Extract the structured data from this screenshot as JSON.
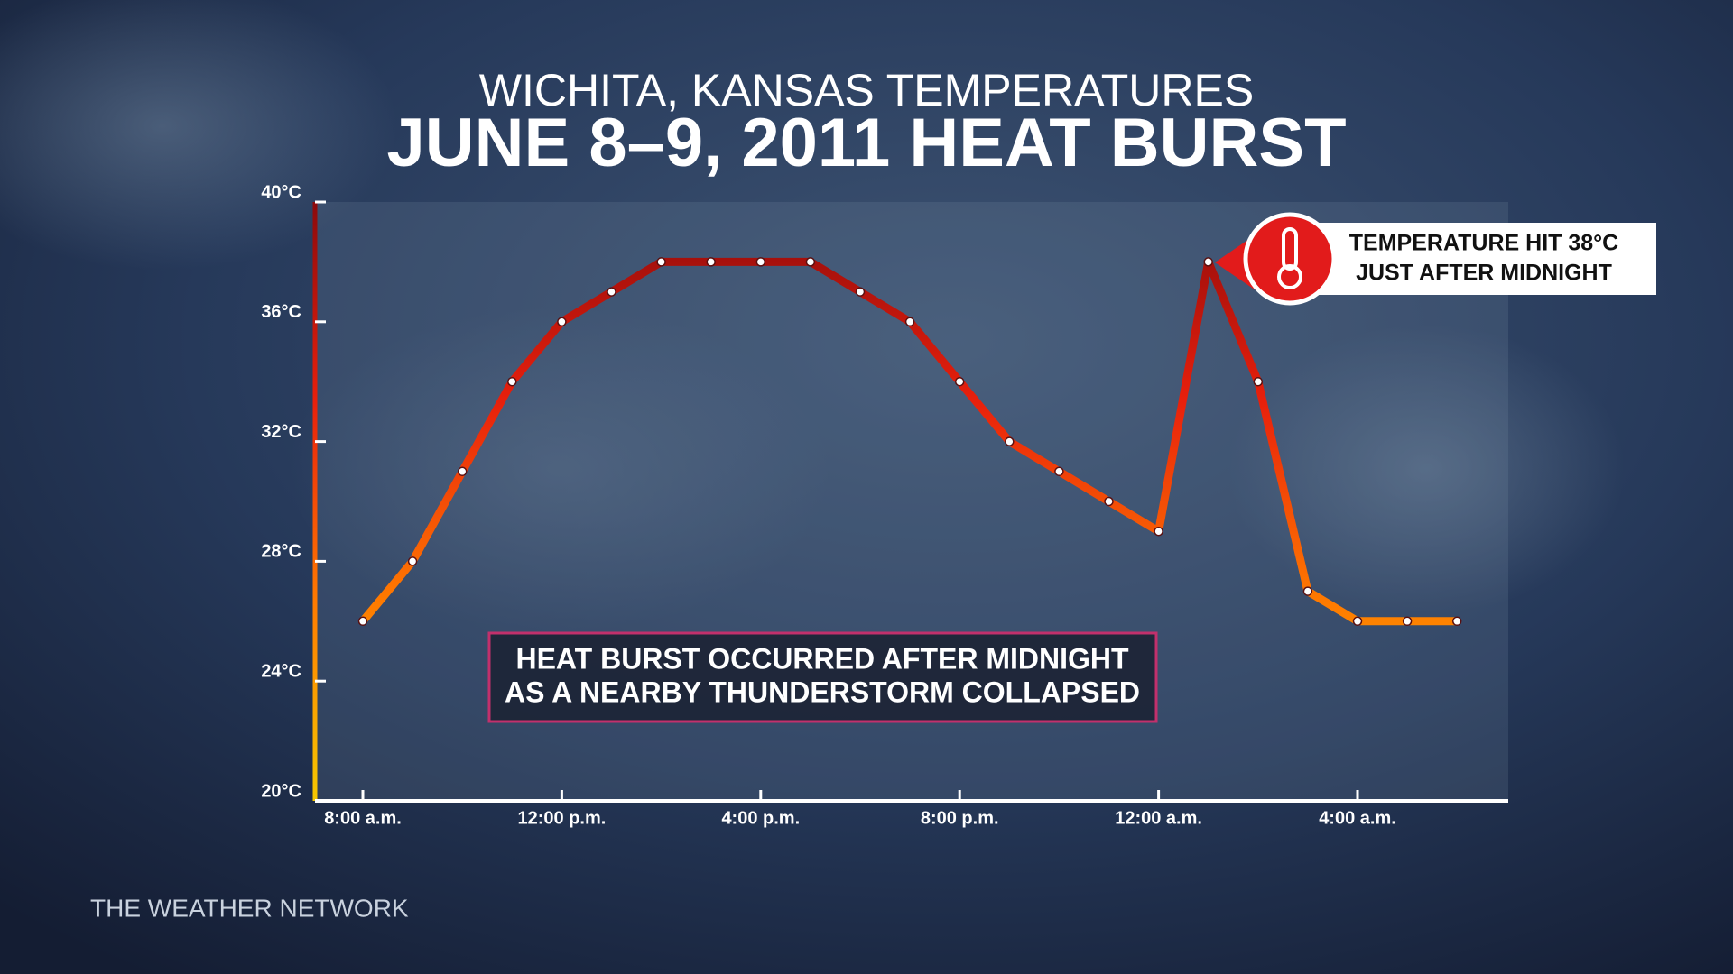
{
  "chart_data": {
    "type": "line",
    "title": "WICHITA, KANSAS TEMPERATURES",
    "subtitle": "JUNE 8–9, 2011 HEAT BURST",
    "categories": [
      "8:00 a.m.",
      null,
      null,
      null,
      "12:00 p.m.",
      null,
      null,
      null,
      "4:00 p.m.",
      null,
      null,
      null,
      "8:00 p.m.",
      null,
      null,
      null,
      "12:00 a.m.",
      null,
      null,
      null,
      "4:00 a.m.",
      null,
      null
    ],
    "values": [
      26,
      28,
      31,
      34,
      36,
      37,
      38,
      38,
      38,
      38,
      37,
      36,
      34,
      32,
      31,
      30,
      29,
      38,
      34,
      27,
      26,
      26,
      26
    ],
    "gradient": [
      "#f5c800",
      "#ff7a00",
      "#e8200c",
      "#8c0a0c"
    ],
    "ylim": [
      20,
      40
    ],
    "yticks": [
      {
        "value": 20,
        "label": "20°C"
      },
      {
        "value": 24,
        "label": "24°C"
      },
      {
        "value": 28,
        "label": "28°C"
      },
      {
        "value": 32,
        "label": "32°C"
      },
      {
        "value": 36,
        "label": "36°C"
      },
      {
        "value": 40,
        "label": "40°C"
      }
    ],
    "annotations": [
      {
        "lines": [
          "TEMPERATURE HIT 38°C",
          "JUST AFTER MIDNIGHT"
        ]
      },
      {
        "lines": [
          "HEAT BURST OCCURRED AFTER MIDNIGHT",
          "AS A NEARBY THUNDERSTORM COLLAPSED"
        ]
      }
    ],
    "source": "THE WEATHER NETWORK"
  }
}
